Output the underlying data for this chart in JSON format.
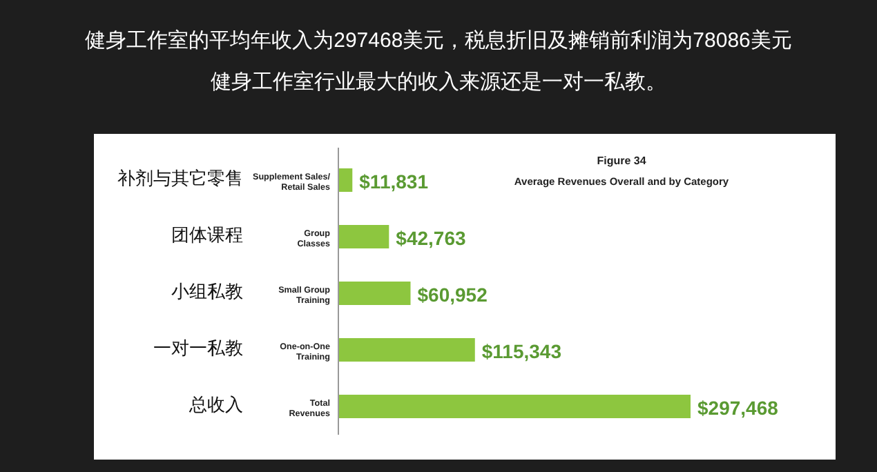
{
  "chart_data": {
    "type": "bar",
    "orientation": "horizontal",
    "title": "健身工作室的平均年收入为297468美元，税息折旧及摊销前利润为78086美元",
    "subtitle": "健身工作室行业最大的收入来源还是一对一私教。",
    "annotations": [
      "Figure 34",
      "Average Revenues Overall and by Category"
    ],
    "categories": [
      "Supplement Sales/\nRetail Sales",
      "Group\nClasses",
      "Small Group\nTraining",
      "One-on-One\nTraining",
      "Total\nRevenues"
    ],
    "y2_categories": [
      "补剂与其它零售",
      "团体课程",
      "小组私教",
      "一对一私教",
      "总收入"
    ],
    "values": [
      11831,
      42763,
      60952,
      115343,
      297468
    ],
    "value_labels": [
      "$11,831",
      "$42,763",
      "$60,952",
      "$115,343",
      "$297,468"
    ],
    "color": "#8dc63f"
  }
}
